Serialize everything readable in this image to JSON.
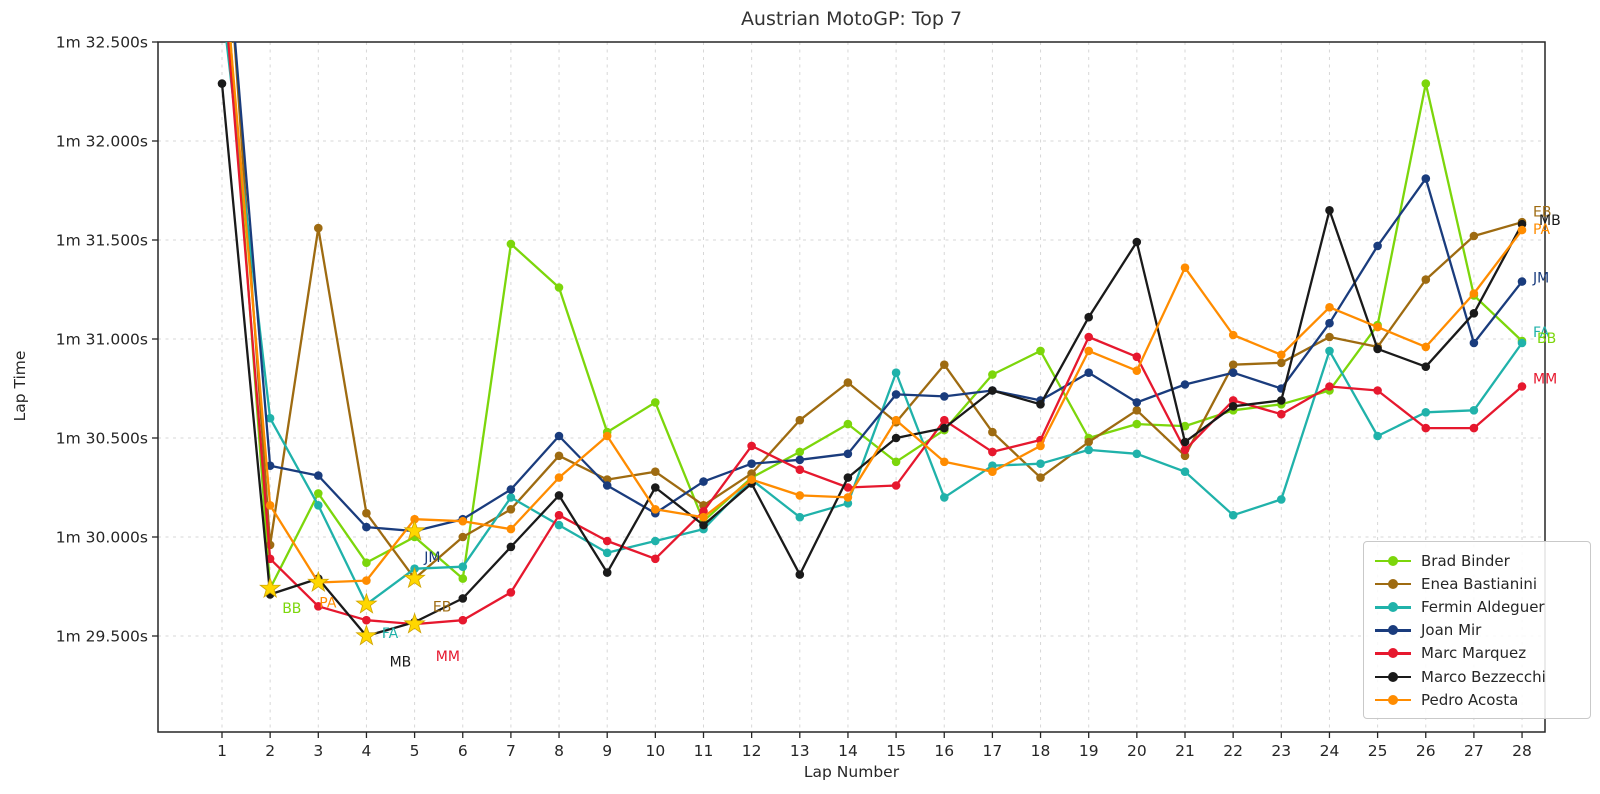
{
  "chart_data": {
    "type": "line",
    "title": "Austrian MotoGP: Top 7",
    "xlabel": "Lap Number",
    "ylabel": "Lap Time",
    "x": [
      1,
      2,
      3,
      4,
      5,
      6,
      7,
      8,
      9,
      10,
      11,
      12,
      13,
      14,
      15,
      16,
      17,
      18,
      19,
      20,
      21,
      22,
      23,
      24,
      25,
      26,
      27,
      28
    ],
    "ylim": [
      29.0,
      32.5
    ],
    "grid": true,
    "legend_position": "lower right",
    "y_ticks": [
      {
        "t": 32.5,
        "label": "1m 32.500s"
      },
      {
        "t": 32.0,
        "label": "1m 32.000s"
      },
      {
        "t": 31.5,
        "label": "1m 31.500s"
      },
      {
        "t": 31.0,
        "label": "1m 31.000s"
      },
      {
        "t": 30.5,
        "label": "1m 30.500s"
      },
      {
        "t": 30.0,
        "label": "1m 30.000s"
      },
      {
        "t": 29.5,
        "label": "1m 29.500s"
      }
    ],
    "series": [
      {
        "name": "Brad Binder",
        "initials": "BB",
        "color": "#7CD60B",
        "values": [
          33.1,
          29.74,
          30.22,
          29.87,
          30.0,
          29.79,
          31.48,
          31.26,
          30.53,
          30.68,
          30.08,
          30.3,
          30.43,
          30.57,
          30.38,
          30.54,
          30.82,
          30.94,
          30.5,
          30.57,
          30.56,
          30.64,
          30.67,
          30.74,
          31.07,
          32.29,
          31.22,
          30.99
        ],
        "fastest_lap": 2
      },
      {
        "name": "Enea Bastianini",
        "initials": "EB",
        "color": "#9E6B11",
        "values": [
          33.4,
          29.96,
          31.56,
          30.12,
          29.79,
          30.0,
          30.14,
          30.41,
          30.29,
          30.33,
          30.16,
          30.32,
          30.59,
          30.78,
          30.58,
          30.87,
          30.53,
          30.3,
          30.48,
          30.64,
          30.41,
          30.87,
          30.88,
          31.01,
          30.96,
          31.3,
          31.52,
          31.59
        ],
        "fastest_lap": 5
      },
      {
        "name": "Fermin Aldeguer",
        "initials": "FA",
        "color": "#20B2AA",
        "values": [
          32.7,
          30.6,
          30.16,
          29.66,
          29.84,
          29.85,
          30.2,
          30.06,
          29.92,
          29.98,
          30.04,
          30.29,
          30.1,
          30.17,
          30.83,
          30.2,
          30.36,
          30.37,
          30.44,
          30.42,
          30.33,
          30.11,
          30.19,
          30.94,
          30.51,
          30.63,
          30.64,
          30.98
        ],
        "fastest_lap": 4
      },
      {
        "name": "Joan Mir",
        "initials": "JM",
        "color": "#1A3C7D",
        "values": [
          33.3,
          30.36,
          30.31,
          30.05,
          30.03,
          30.09,
          30.24,
          30.51,
          30.26,
          30.12,
          30.28,
          30.37,
          30.39,
          30.42,
          30.72,
          30.71,
          30.74,
          30.69,
          30.83,
          30.68,
          30.77,
          30.83,
          30.75,
          31.08,
          31.47,
          31.81,
          30.98,
          31.29
        ],
        "fastest_lap": 5
      },
      {
        "name": "Marc Marquez",
        "initials": "MM",
        "color": "#E6182E",
        "values": [
          32.9,
          29.89,
          29.65,
          29.58,
          29.56,
          29.58,
          29.72,
          30.11,
          29.98,
          29.89,
          30.13,
          30.46,
          30.34,
          30.25,
          30.26,
          30.59,
          30.43,
          30.49,
          31.01,
          30.91,
          30.44,
          30.69,
          30.62,
          30.76,
          30.74,
          30.55,
          30.55,
          30.76
        ],
        "fastest_lap": 5
      },
      {
        "name": "Marco Bezzecchi",
        "initials": "MB",
        "color": "#1A1A1A",
        "values": [
          32.29,
          29.71,
          29.79,
          29.5,
          29.57,
          29.69,
          29.95,
          30.21,
          29.82,
          30.25,
          30.06,
          30.27,
          29.81,
          30.3,
          30.5,
          30.55,
          30.74,
          30.67,
          31.11,
          31.49,
          30.48,
          30.66,
          30.69,
          31.65,
          30.95,
          30.86,
          31.13,
          31.58
        ],
        "fastest_lap": 4
      },
      {
        "name": "Pedro Acosta",
        "initials": "PA",
        "color": "#FF8C00",
        "values": [
          33.0,
          30.16,
          29.77,
          29.78,
          30.09,
          30.08,
          30.04,
          30.3,
          30.51,
          30.14,
          30.1,
          30.29,
          30.21,
          30.2,
          30.59,
          30.38,
          30.33,
          30.46,
          30.94,
          30.84,
          31.36,
          31.02,
          30.92,
          31.16,
          31.06,
          30.96,
          31.23,
          31.55
        ],
        "fastest_lap": 3
      }
    ],
    "star_color": "#FFD700",
    "star_edge_color": "#CFA302",
    "initial_annotations": [
      {
        "text": "BB",
        "color": "#7CD60B",
        "lap": 2.25,
        "time": 29.615
      },
      {
        "text": "PA",
        "color": "#FF8C00",
        "lap": 3.02,
        "time": 29.645
      },
      {
        "text": "FA",
        "color": "#20B2AA",
        "lap": 4.32,
        "time": 29.49
      },
      {
        "text": "MB",
        "color": "#1A1A1A",
        "lap": 4.48,
        "time": 29.345
      },
      {
        "text": "EB",
        "color": "#9E6B11",
        "lap": 5.38,
        "time": 29.625
      },
      {
        "text": "JM",
        "color": "#1A3C7D",
        "lap": 5.2,
        "time": 29.875
      },
      {
        "text": "MM",
        "color": "#E6182E",
        "lap": 5.44,
        "time": 29.375
      }
    ],
    "end_labels": [
      {
        "text": "EB",
        "color": "#9E6B11",
        "time": 31.645,
        "dx": 0
      },
      {
        "text": "MB",
        "color": "#1A1A1A",
        "time": 31.6,
        "dx": 6
      },
      {
        "text": "PA",
        "color": "#FF8C00",
        "time": 31.555,
        "dx": 0
      },
      {
        "text": "JM",
        "color": "#1A3C7D",
        "time": 31.31,
        "dx": 0
      },
      {
        "text": "FA",
        "color": "#20B2AA",
        "time": 31.035,
        "dx": 0
      },
      {
        "text": "BB",
        "color": "#7CD60B",
        "time": 31.005,
        "dx": 4
      },
      {
        "text": "MM",
        "color": "#E6182E",
        "time": 30.8,
        "dx": 0
      }
    ]
  }
}
